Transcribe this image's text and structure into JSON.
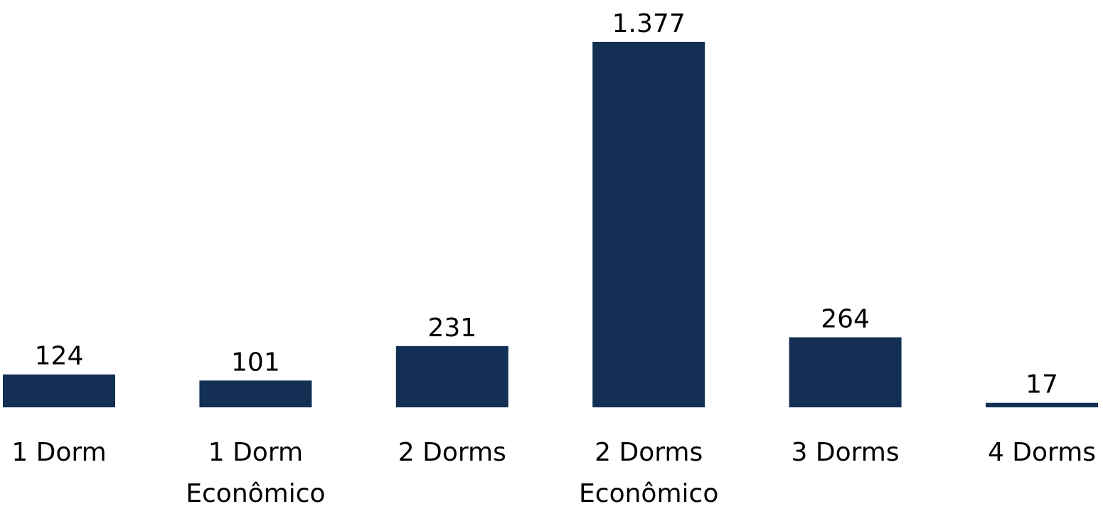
{
  "chart_data": {
    "type": "bar",
    "categories": [
      [
        "1 Dorm"
      ],
      [
        "1 Dorm",
        "Econômico"
      ],
      [
        "2 Dorms"
      ],
      [
        "2 Dorms",
        "Econômico"
      ],
      [
        "3 Dorms"
      ],
      [
        "4 Dorms"
      ]
    ],
    "values": [
      124,
      101,
      231,
      1377,
      264,
      17
    ],
    "value_labels": [
      "124",
      "101",
      "231",
      "1.377",
      "264",
      "17"
    ],
    "title": "",
    "xlabel": "",
    "ylabel": "",
    "ylim": [
      0,
      1377
    ],
    "grid": false,
    "legend": "none",
    "bar_color": "#132f54",
    "text_color": "#000000"
  }
}
